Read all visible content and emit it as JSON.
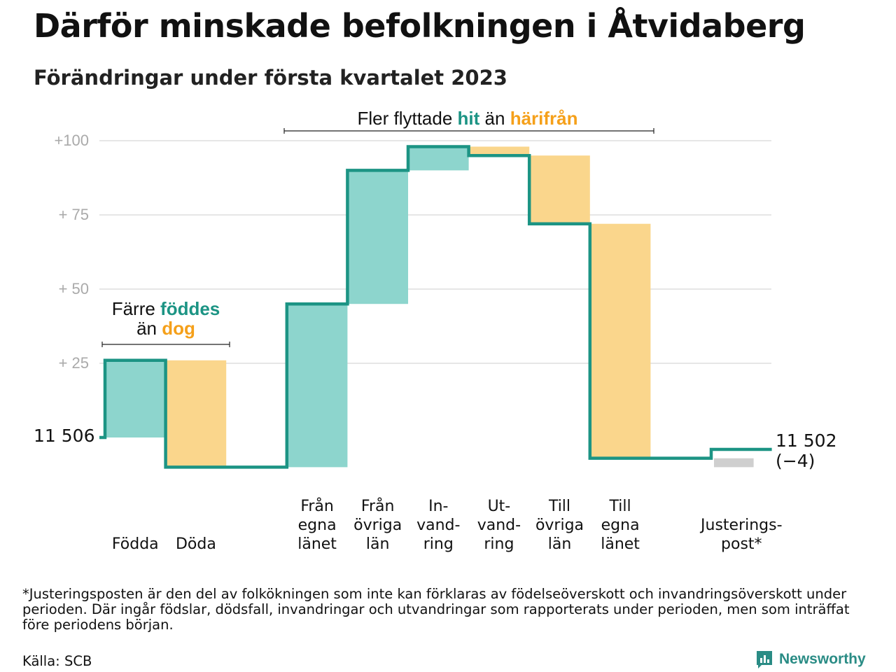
{
  "title": "Därför minskade befolkningen i Åtvidaberg",
  "subtitle": "Förändringar under första kvartalet 2023",
  "colors": {
    "positive": "#8dd5cd",
    "negative": "#fad68c",
    "adjustment": "#cfcfcf",
    "line": "#1c9484",
    "teal_text": "#1c9484",
    "orange_text": "#f5a01a",
    "grid": "#dddddd"
  },
  "annotations": {
    "migration": {
      "prefix": "Fler flyttade ",
      "hi1": "hit",
      "middle": " än ",
      "hi2": "härifrån"
    },
    "births": {
      "line1_prefix": "Färre ",
      "line1_hi": "föddes",
      "line2_prefix": "än ",
      "line2_hi": "dog"
    }
  },
  "start_label": "11 506",
  "end_label": {
    "value": "11 502",
    "change": "(−4)"
  },
  "chart_data": {
    "type": "waterfall",
    "title": "Därför minskade befolkningen i Åtvidaberg",
    "subtitle": "Förändringar under första kvartalet 2023",
    "start_value": 11506,
    "end_value": 11502,
    "net_change": -4,
    "ylim": [
      -14,
      104
    ],
    "yticks": [
      {
        "value": 25,
        "label": "+ 25"
      },
      {
        "value": 50,
        "label": "+ 50"
      },
      {
        "value": 75,
        "label": "+ 75"
      },
      {
        "value": 100,
        "label": "+100"
      }
    ],
    "grid": true,
    "steps": [
      {
        "category": "Födda",
        "label_lines": [
          "Födda"
        ],
        "change": 26,
        "kind": "positive"
      },
      {
        "category": "Döda",
        "label_lines": [
          "Döda"
        ],
        "change": -36,
        "kind": "negative"
      },
      {
        "category": "",
        "label_lines": [],
        "change": 0,
        "kind": "gap"
      },
      {
        "category": "Från egna länet",
        "label_lines": [
          "Från",
          "egna",
          "länet"
        ],
        "change": 55,
        "kind": "positive"
      },
      {
        "category": "Från övriga län",
        "label_lines": [
          "Från",
          "övriga",
          "län"
        ],
        "change": 45,
        "kind": "positive"
      },
      {
        "category": "Invandring",
        "label_lines": [
          "In-",
          "vand-",
          "ring"
        ],
        "change": 8,
        "kind": "positive"
      },
      {
        "category": "Utvandring",
        "label_lines": [
          "Ut-",
          "vand-",
          "ring"
        ],
        "change": -3,
        "kind": "negative"
      },
      {
        "category": "Till övriga län",
        "label_lines": [
          "Till",
          "övriga",
          "län"
        ],
        "change": -23,
        "kind": "negative"
      },
      {
        "category": "Till egna länet",
        "label_lines": [
          "Till",
          "egna",
          "länet"
        ],
        "change": -79,
        "kind": "negative"
      },
      {
        "category": "",
        "label_lines": [],
        "change": 0,
        "kind": "gap"
      },
      {
        "category": "Justeringspost*",
        "label_lines": [
          "Justerings-",
          "post*"
        ],
        "change": 3,
        "kind": "adjustment"
      }
    ]
  },
  "footnote": "*Justeringsposten är den del av folkökningen som inte kan förklaras av födelseöverskott och invandringsöverskott under perioden. Där ingår födslar, dödsfall, invandringar och utvandringar som rapporterats under perioden, men som inträffat före periodens början.",
  "source": "Källa: SCB",
  "logo_text": "Newsworthy"
}
